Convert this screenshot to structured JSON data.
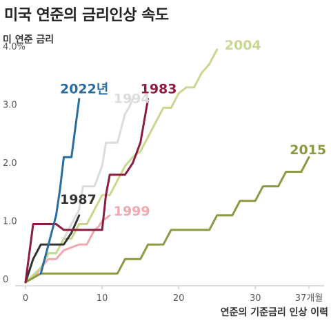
{
  "title": "미국 연준의 금리인상 속도",
  "chart_data": {
    "type": "line",
    "ylabel": "미 연준 금리",
    "xlabel": "연준의 기준금리 인상 이력",
    "xlim": [
      0,
      37
    ],
    "ylim": [
      0,
      4
    ],
    "x_ticks": [
      {
        "v": 0,
        "label": "0"
      },
      {
        "v": 10,
        "label": "10"
      },
      {
        "v": 20,
        "label": "20"
      },
      {
        "v": 30,
        "label": "30"
      },
      {
        "v": 37,
        "label": "37개월"
      }
    ],
    "y_ticks": [
      {
        "v": 0,
        "label": "0"
      },
      {
        "v": 1,
        "label": "1.0"
      },
      {
        "v": 2,
        "label": "2.0"
      },
      {
        "v": 3,
        "label": "3.0"
      },
      {
        "v": 4,
        "label": "4.0%"
      }
    ],
    "grid": false,
    "series": [
      {
        "name": "1994",
        "color": "#dcdcdc",
        "points": [
          [
            0,
            0
          ],
          [
            2,
            0.25
          ],
          [
            3,
            0.5
          ],
          [
            4,
            0.5
          ],
          [
            5,
            0.75
          ],
          [
            6,
            1.0
          ],
          [
            7,
            1.25
          ],
          [
            7.5,
            1.65
          ],
          [
            9,
            1.65
          ],
          [
            10,
            2.0
          ],
          [
            10.5,
            2.4
          ],
          [
            12,
            2.4
          ],
          [
            13,
            2.9
          ],
          [
            13.5,
            3.0
          ],
          [
            14,
            3.15
          ]
        ],
        "label_x": 11.5,
        "label_y": 3.08
      },
      {
        "name": "1999",
        "color": "#f0a8b0",
        "points": [
          [
            0,
            0
          ],
          [
            1.5,
            0.15
          ],
          [
            2,
            0.25
          ],
          [
            3,
            0.4
          ],
          [
            4,
            0.4
          ],
          [
            5,
            0.55
          ],
          [
            6,
            0.6
          ],
          [
            7,
            0.65
          ],
          [
            8,
            0.65
          ],
          [
            9,
            0.9
          ],
          [
            9.5,
            0.95
          ],
          [
            10,
            1.05
          ],
          [
            11,
            1.15
          ]
        ],
        "label_x": 11.5,
        "label_y": 1.15
      },
      {
        "name": "2004",
        "color": "#c8d890",
        "points": [
          [
            0,
            0
          ],
          [
            2,
            0.25
          ],
          [
            3,
            0.5
          ],
          [
            4,
            0.5
          ],
          [
            5,
            0.75
          ],
          [
            6,
            0.75
          ],
          [
            7,
            1.0
          ],
          [
            8,
            1.0
          ],
          [
            9,
            1.25
          ],
          [
            10,
            1.5
          ],
          [
            11,
            1.5
          ],
          [
            12,
            1.75
          ],
          [
            13,
            2.0
          ],
          [
            14,
            2.15
          ],
          [
            15,
            2.25
          ],
          [
            16,
            2.5
          ],
          [
            17,
            2.75
          ],
          [
            18,
            3.0
          ],
          [
            19,
            3.0
          ],
          [
            20,
            3.25
          ],
          [
            21,
            3.35
          ],
          [
            22,
            3.35
          ],
          [
            23,
            3.6
          ],
          [
            24,
            3.75
          ],
          [
            25,
            4.0
          ]
        ],
        "label_x": 26,
        "label_y": 4.0
      },
      {
        "name": "2015",
        "color": "#8a9a40",
        "points": [
          [
            0,
            0
          ],
          [
            2,
            0.15
          ],
          [
            12,
            0.15
          ],
          [
            13,
            0.4
          ],
          [
            15,
            0.4
          ],
          [
            16,
            0.65
          ],
          [
            18,
            0.65
          ],
          [
            19,
            0.9
          ],
          [
            24,
            0.9
          ],
          [
            25,
            1.15
          ],
          [
            27,
            1.15
          ],
          [
            28,
            1.4
          ],
          [
            30,
            1.4
          ],
          [
            31,
            1.65
          ],
          [
            33,
            1.65
          ],
          [
            34,
            1.9
          ],
          [
            36,
            1.9
          ],
          [
            37,
            2.15
          ]
        ],
        "label_x": 34.5,
        "label_y": 2.2
      },
      {
        "name": "1987",
        "color": "#333333",
        "points": [
          [
            0,
            0
          ],
          [
            1,
            0.4
          ],
          [
            2,
            0.65
          ],
          [
            4,
            0.65
          ],
          [
            5,
            0.65
          ],
          [
            6,
            0.85
          ],
          [
            7,
            1.15
          ]
        ],
        "label_x": 4.5,
        "label_y": 1.35
      },
      {
        "name": "1983",
        "color": "#8c1c40",
        "points": [
          [
            0,
            0
          ],
          [
            1,
            1.0
          ],
          [
            4,
            1.0
          ],
          [
            5,
            0.9
          ],
          [
            10,
            0.9
          ],
          [
            10.5,
            1.5
          ],
          [
            11,
            1.85
          ],
          [
            13,
            1.85
          ],
          [
            14,
            2.05
          ],
          [
            15,
            2.4
          ],
          [
            16,
            3.15
          ]
        ],
        "label_x": 15,
        "label_y": 3.25
      },
      {
        "name": "2022년",
        "color": "#2a6ea0",
        "points": [
          [
            2,
            0.15
          ],
          [
            3,
            0.65
          ],
          [
            4,
            1.15
          ],
          [
            4.5,
            1.6
          ],
          [
            5,
            2.15
          ],
          [
            6,
            2.15
          ],
          [
            7,
            3.15
          ]
        ],
        "label_x": 4.5,
        "label_y": 3.25
      }
    ]
  }
}
